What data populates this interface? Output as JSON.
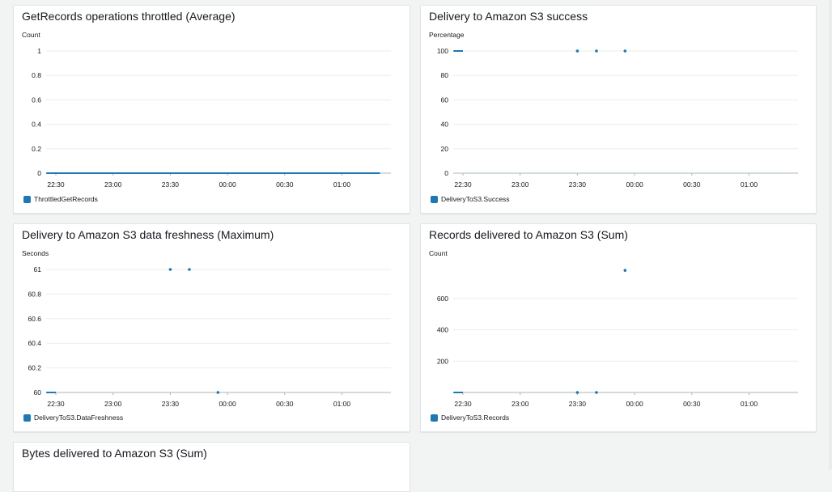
{
  "dashboard": {
    "panels": [
      {
        "title": "GetRecords operations throttled (Average)",
        "unit": "Count",
        "legend": "ThrottledGetRecords"
      },
      {
        "title": "Delivery to Amazon S3 success",
        "unit": "Percentage",
        "legend": "DeliveryToS3.Success"
      },
      {
        "title": "Delivery to Amazon S3 data freshness (Maximum)",
        "unit": "Seconds",
        "legend": "DeliveryToS3.DataFreshness"
      },
      {
        "title": "Records delivered to Amazon S3 (Sum)",
        "unit": "Count",
        "legend": "DeliveryToS3.Records"
      },
      {
        "title": "Bytes delivered to Amazon S3 (Sum)",
        "unit": "",
        "legend": ""
      }
    ]
  },
  "chart_data": [
    {
      "type": "line",
      "title": "GetRecords operations throttled (Average)",
      "ylabel": "Count",
      "x_ticks": [
        "22:30",
        "23:00",
        "23:30",
        "00:00",
        "00:30",
        "01:00"
      ],
      "y_ticks": [
        "0",
        "0.2",
        "0.4",
        "0.6",
        "0.8",
        "1"
      ],
      "ylim": [
        0,
        1
      ],
      "color": "#1f77b4",
      "series": [
        {
          "name": "ThrottledGetRecords",
          "segments": [
            [
              [
                "22:25",
                0
              ],
              [
                "01:20",
                0
              ]
            ]
          ],
          "points": []
        }
      ]
    },
    {
      "type": "line",
      "title": "Delivery to Amazon S3 success",
      "ylabel": "Percentage",
      "x_ticks": [
        "22:30",
        "23:00",
        "23:30",
        "00:00",
        "00:30",
        "01:00"
      ],
      "y_ticks": [
        "0",
        "20",
        "40",
        "60",
        "80",
        "100"
      ],
      "ylim": [
        0,
        100
      ],
      "color": "#1f77b4",
      "series": [
        {
          "name": "DeliveryToS3.Success",
          "segments": [
            [
              [
                "22:25",
                100
              ],
              [
                "22:30",
                100
              ]
            ]
          ],
          "points": [
            [
              "23:30",
              100
            ],
            [
              "23:40",
              100
            ],
            [
              "23:55",
              100
            ]
          ]
        }
      ]
    },
    {
      "type": "line",
      "title": "Delivery to Amazon S3 data freshness (Maximum)",
      "ylabel": "Seconds",
      "x_ticks": [
        "22:30",
        "23:00",
        "23:30",
        "00:00",
        "00:30",
        "01:00"
      ],
      "y_ticks": [
        "60",
        "60.2",
        "60.4",
        "60.6",
        "60.8",
        "61"
      ],
      "ylim": [
        60,
        61
      ],
      "color": "#1f77b4",
      "series": [
        {
          "name": "DeliveryToS3.DataFreshness",
          "segments": [
            [
              [
                "22:25",
                60
              ],
              [
                "22:30",
                60
              ]
            ]
          ],
          "points": [
            [
              "23:30",
              61
            ],
            [
              "23:40",
              61
            ],
            [
              "23:55",
              60
            ]
          ]
        }
      ]
    },
    {
      "type": "line",
      "title": "Records delivered to Amazon S3 (Sum)",
      "ylabel": "Count",
      "x_ticks": [
        "22:30",
        "23:00",
        "23:30",
        "00:00",
        "00:30",
        "01:00"
      ],
      "y_ticks": [
        "200",
        "400",
        "600"
      ],
      "ylim": [
        0,
        780
      ],
      "color": "#1f77b4",
      "series": [
        {
          "name": "DeliveryToS3.Records",
          "segments": [
            [
              [
                "22:25",
                0
              ],
              [
                "22:30",
                0
              ]
            ]
          ],
          "points": [
            [
              "23:30",
              0
            ],
            [
              "23:40",
              0
            ],
            [
              "23:55",
              780
            ]
          ]
        }
      ]
    }
  ]
}
